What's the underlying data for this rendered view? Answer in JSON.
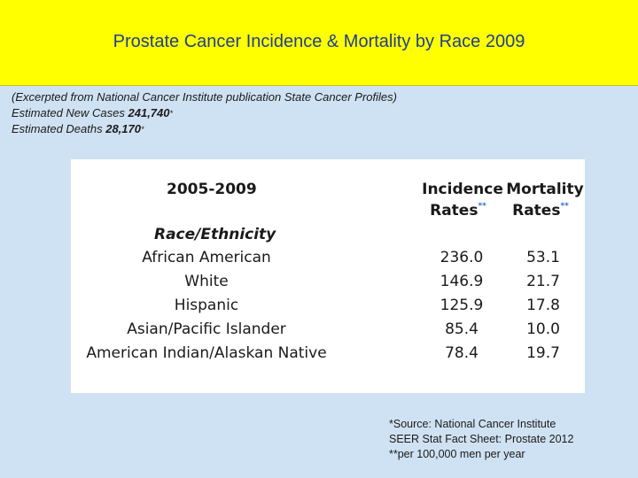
{
  "title": "Prostate Cancer Incidence & Mortality by Race 2009",
  "intro": {
    "line1": "(Excerpted from National Cancer Institute publication State Cancer Profiles)",
    "line2_label": "Estimated New Cases ",
    "line2_value": "241,740",
    "line2_mark": "*",
    "line3_label": "Estimated Deaths ",
    "line3_value": "28,170",
    "line3_mark": "*"
  },
  "table": {
    "period": "2005-2009",
    "incidence_header": "Incidence",
    "mortality_header": "Mortality",
    "rates_label": "Rates",
    "rates_mark": "**",
    "race_header": "Race/Ethnicity",
    "rows": [
      {
        "race": "African American",
        "incidence": "236.0",
        "mortality": "53.1"
      },
      {
        "race": "White",
        "incidence": "146.9",
        "mortality": "21.7"
      },
      {
        "race": "Hispanic",
        "incidence": "125.9",
        "mortality": "17.8"
      },
      {
        "race": "Asian/Pacific Islander",
        "incidence": "85.4",
        "mortality": "10.0"
      },
      {
        "race": "American Indian/Alaskan Native",
        "incidence": "78.4",
        "mortality": "19.7"
      }
    ]
  },
  "source": {
    "line1": "*Source: National Cancer Institute",
    "line2": "SEER Stat Fact Sheet: Prostate 2012",
    "line3": "**per 100,000 men per year"
  }
}
